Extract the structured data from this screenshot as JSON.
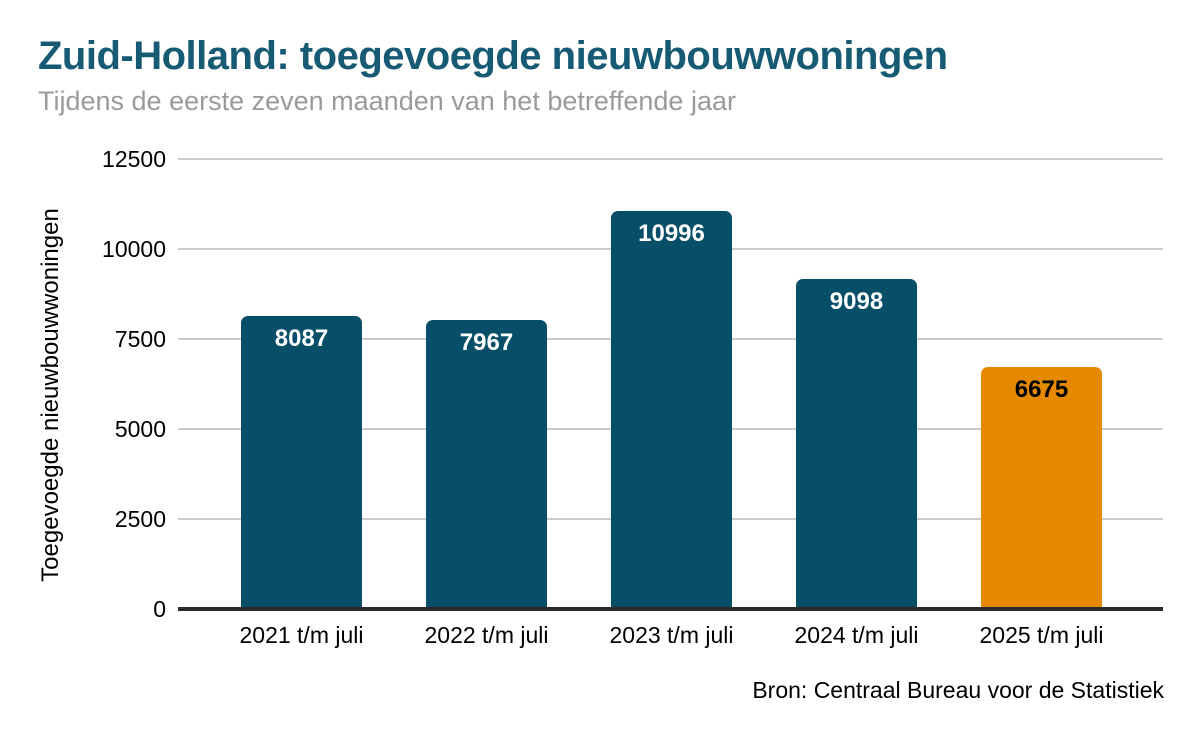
{
  "header": {
    "title": "Zuid-Holland: toegevoegde nieuwbouwwoningen",
    "subtitle": "Tijdens de eerste zeven maanden van het betreffende jaar"
  },
  "footer": {
    "source": "Bron: Centraal Bureau voor de Statistiek"
  },
  "colors": {
    "title": "#175a74",
    "subtitle": "#9a9a9a",
    "bar_teal": "#074f68",
    "bar_orange": "#e58900",
    "gridline": "#cccccc",
    "baseline": "#2b2b2b",
    "axis_text": "#000000"
  },
  "chart_data": {
    "type": "bar",
    "title": "Zuid-Holland: toegevoegde nieuwbouwwoningen",
    "subtitle": "Tijdens de eerste zeven maanden van het betreffende jaar",
    "categories": [
      "2021 t/m juli",
      "2022 t/m juli",
      "2023 t/m juli",
      "2024 t/m juli",
      "2025 t/m juli"
    ],
    "values": [
      8087,
      7967,
      10996,
      9098,
      6675
    ],
    "bar_colors": [
      "#074f68",
      "#074f68",
      "#074f68",
      "#074f68",
      "#e58900"
    ],
    "value_label_colors": [
      "#ffffff",
      "#ffffff",
      "#ffffff",
      "#ffffff",
      "#000000"
    ],
    "xlabel": "",
    "ylabel": "Toegevoegde nieuwbouwwoningen",
    "yticks": [
      0,
      2500,
      5000,
      7500,
      10000,
      12500
    ],
    "ylim": [
      0,
      12500
    ],
    "grid": "horizontal",
    "legend": "none",
    "source": "Bron: Centraal Bureau voor de Statistiek"
  }
}
